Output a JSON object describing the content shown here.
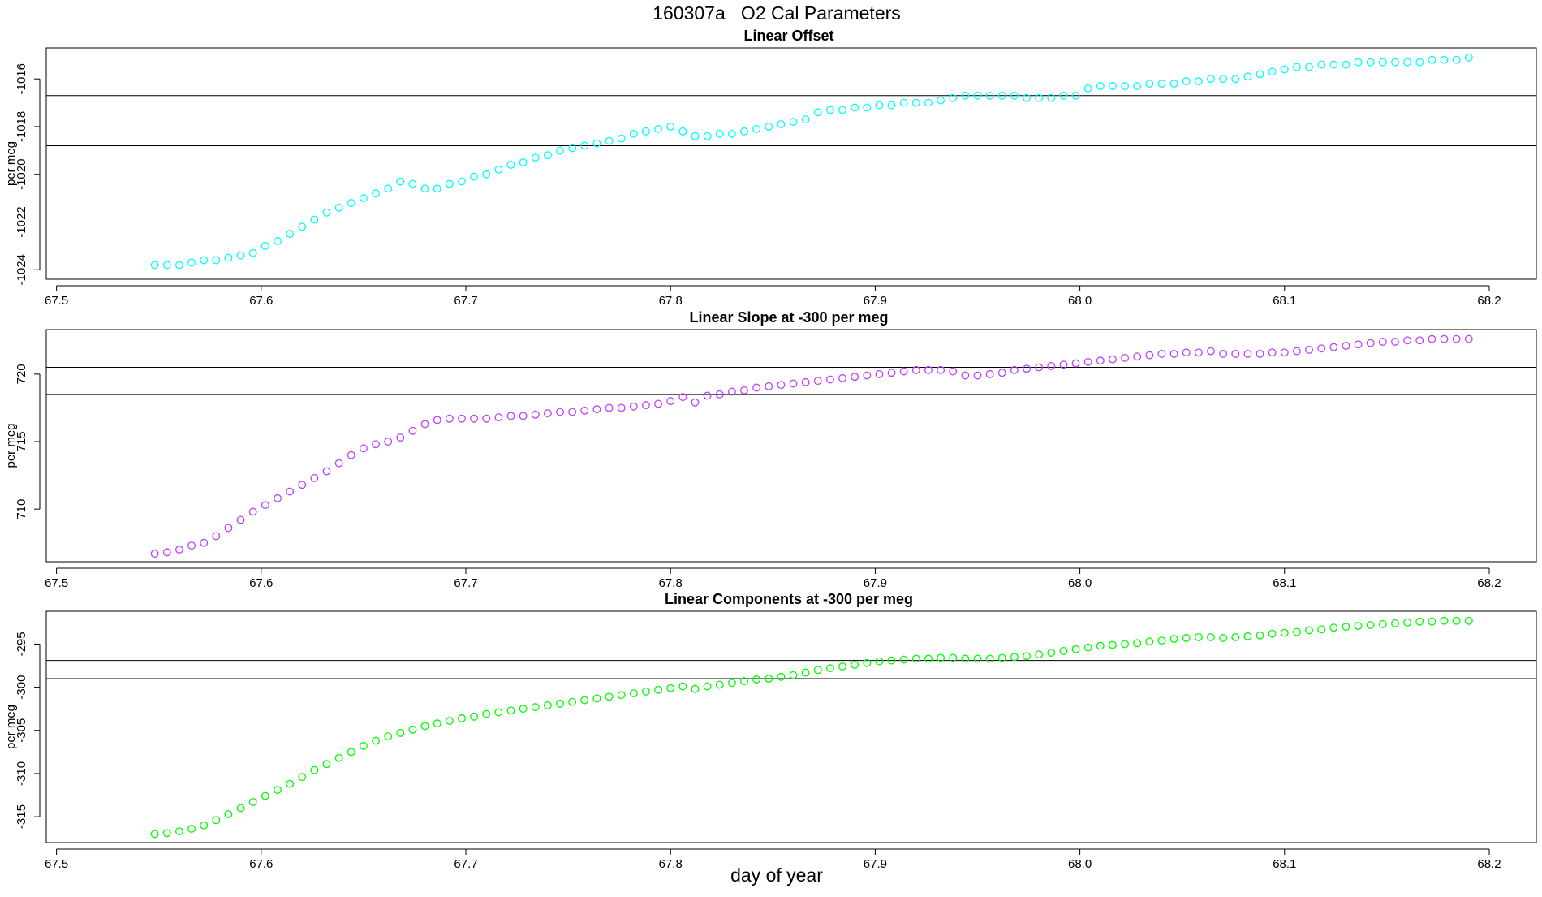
{
  "title": "160307a   O2 Cal Parameters",
  "chart_data": [
    {
      "type": "scatter",
      "title": "Linear Offset",
      "ylabel": "per meg",
      "color": "#00ffff",
      "xlim": [
        67.495,
        68.223
      ],
      "xticks": [
        67.5,
        67.6,
        67.7,
        67.8,
        67.9,
        {
          "value": 68,
          "label": "68.0"
        },
        68.1,
        68.2
      ],
      "ylim": [
        -1024.4,
        -1014.7
      ],
      "yticks": [
        -1024,
        -1022,
        -1020,
        -1018,
        -1016
      ],
      "hlines": [
        -1016.7,
        -1018.8
      ],
      "x": [
        67.548,
        67.554,
        67.56,
        67.566,
        67.572,
        67.578,
        67.584,
        67.59,
        67.596,
        67.602,
        67.608,
        67.614,
        67.62,
        67.626,
        67.632,
        67.638,
        67.644,
        67.65,
        67.656,
        67.662,
        67.668,
        67.674,
        67.68,
        67.686,
        67.692,
        67.698,
        67.704,
        67.71,
        67.716,
        67.722,
        67.728,
        67.734,
        67.74,
        67.746,
        67.752,
        67.758,
        67.764,
        67.77,
        67.776,
        67.782,
        67.788,
        67.794,
        67.8,
        67.806,
        67.812,
        67.818,
        67.824,
        67.83,
        67.836,
        67.842,
        67.848,
        67.854,
        67.86,
        67.866,
        67.872,
        67.878,
        67.884,
        67.89,
        67.896,
        67.902,
        67.908,
        67.914,
        67.92,
        67.926,
        67.932,
        67.938,
        67.944,
        67.95,
        67.956,
        67.962,
        67.968,
        67.974,
        67.98,
        67.986,
        67.992,
        67.998,
        68.004,
        68.01,
        68.016,
        68.022,
        68.028,
        68.034,
        68.04,
        68.046,
        68.052,
        68.058,
        68.064,
        68.07,
        68.076,
        68.082,
        68.088,
        68.094,
        68.1,
        68.106,
        68.112,
        68.118,
        68.124,
        68.13,
        68.136,
        68.142,
        68.148,
        68.154,
        68.16,
        68.166,
        68.172,
        68.178,
        68.184,
        68.19
      ],
      "values": [
        -1023.8,
        -1023.8,
        -1023.8,
        -1023.7,
        -1023.6,
        -1023.6,
        -1023.5,
        -1023.4,
        -1023.3,
        -1023.0,
        -1022.8,
        -1022.5,
        -1022.2,
        -1021.9,
        -1021.6,
        -1021.4,
        -1021.2,
        -1021.0,
        -1020.8,
        -1020.6,
        -1020.3,
        -1020.4,
        -1020.6,
        -1020.6,
        -1020.4,
        -1020.3,
        -1020.1,
        -1020.0,
        -1019.8,
        -1019.6,
        -1019.5,
        -1019.3,
        -1019.2,
        -1019.0,
        -1018.9,
        -1018.8,
        -1018.7,
        -1018.6,
        -1018.5,
        -1018.3,
        -1018.2,
        -1018.1,
        -1018.0,
        -1018.2,
        -1018.4,
        -1018.4,
        -1018.3,
        -1018.3,
        -1018.2,
        -1018.1,
        -1018.0,
        -1017.9,
        -1017.8,
        -1017.7,
        -1017.4,
        -1017.3,
        -1017.3,
        -1017.2,
        -1017.2,
        -1017.1,
        -1017.1,
        -1017.0,
        -1017.0,
        -1017.0,
        -1016.9,
        -1016.8,
        -1016.7,
        -1016.7,
        -1016.7,
        -1016.7,
        -1016.7,
        -1016.8,
        -1016.8,
        -1016.8,
        -1016.7,
        -1016.7,
        -1016.4,
        -1016.3,
        -1016.3,
        -1016.3,
        -1016.3,
        -1016.2,
        -1016.2,
        -1016.2,
        -1016.1,
        -1016.1,
        -1016.0,
        -1016.0,
        -1016.0,
        -1015.9,
        -1015.8,
        -1015.7,
        -1015.6,
        -1015.5,
        -1015.5,
        -1015.4,
        -1015.4,
        -1015.4,
        -1015.3,
        -1015.3,
        -1015.3,
        -1015.3,
        -1015.3,
        -1015.3,
        -1015.2,
        -1015.2,
        -1015.2,
        -1015.1
      ]
    },
    {
      "type": "scatter",
      "title": "Linear Slope at -300 per meg",
      "ylabel": "per meg",
      "color": "#c040ff",
      "xlim": [
        67.495,
        68.223
      ],
      "xticks": [
        67.5,
        67.6,
        67.7,
        67.8,
        67.9,
        {
          "value": 68,
          "label": "68.0"
        },
        68.1,
        68.2
      ],
      "ylim": [
        706.1,
        723.3
      ],
      "yticks": [
        710,
        715,
        720
      ],
      "hlines": [
        720.5,
        718.5
      ],
      "x": [
        67.548,
        67.554,
        67.56,
        67.566,
        67.572,
        67.578,
        67.584,
        67.59,
        67.596,
        67.602,
        67.608,
        67.614,
        67.62,
        67.626,
        67.632,
        67.638,
        67.644,
        67.65,
        67.656,
        67.662,
        67.668,
        67.674,
        67.68,
        67.686,
        67.692,
        67.698,
        67.704,
        67.71,
        67.716,
        67.722,
        67.728,
        67.734,
        67.74,
        67.746,
        67.752,
        67.758,
        67.764,
        67.77,
        67.776,
        67.782,
        67.788,
        67.794,
        67.8,
        67.806,
        67.812,
        67.818,
        67.824,
        67.83,
        67.836,
        67.842,
        67.848,
        67.854,
        67.86,
        67.866,
        67.872,
        67.878,
        67.884,
        67.89,
        67.896,
        67.902,
        67.908,
        67.914,
        67.92,
        67.926,
        67.932,
        67.938,
        67.944,
        67.95,
        67.956,
        67.962,
        67.968,
        67.974,
        67.98,
        67.986,
        67.992,
        67.998,
        68.004,
        68.01,
        68.016,
        68.022,
        68.028,
        68.034,
        68.04,
        68.046,
        68.052,
        68.058,
        68.064,
        68.07,
        68.076,
        68.082,
        68.088,
        68.094,
        68.1,
        68.106,
        68.112,
        68.118,
        68.124,
        68.13,
        68.136,
        68.142,
        68.148,
        68.154,
        68.16,
        68.166,
        68.172,
        68.178,
        68.184,
        68.19
      ],
      "values": [
        706.7,
        706.8,
        707.0,
        707.3,
        707.5,
        708.0,
        708.6,
        709.2,
        709.8,
        710.3,
        710.8,
        711.3,
        711.8,
        712.3,
        712.8,
        713.4,
        714.0,
        714.5,
        714.8,
        715.0,
        715.3,
        715.8,
        716.3,
        716.6,
        716.7,
        716.7,
        716.7,
        716.7,
        716.8,
        716.9,
        716.9,
        717.0,
        717.1,
        717.2,
        717.2,
        717.3,
        717.4,
        717.5,
        717.5,
        717.6,
        717.7,
        717.8,
        718.0,
        718.3,
        717.9,
        718.4,
        718.5,
        718.7,
        718.8,
        719.0,
        719.1,
        719.2,
        719.3,
        719.4,
        719.5,
        719.6,
        719.7,
        719.8,
        719.9,
        720.0,
        720.1,
        720.2,
        720.3,
        720.3,
        720.3,
        720.2,
        719.9,
        719.9,
        720.0,
        720.1,
        720.3,
        720.4,
        720.5,
        720.6,
        720.7,
        720.8,
        720.9,
        721.0,
        721.1,
        721.2,
        721.3,
        721.4,
        721.5,
        721.5,
        721.6,
        721.6,
        721.7,
        721.5,
        721.5,
        721.5,
        721.5,
        721.6,
        721.6,
        721.7,
        721.8,
        721.9,
        722.0,
        722.1,
        722.2,
        722.3,
        722.4,
        722.4,
        722.5,
        722.5,
        722.6,
        722.6,
        722.6,
        722.6
      ]
    },
    {
      "type": "scatter",
      "title": "Linear Components at -300 per meg",
      "ylabel": "per meg",
      "xlabel": "day of year",
      "color": "#00ff00",
      "xlim": [
        67.495,
        68.223
      ],
      "xticks": [
        67.5,
        67.6,
        67.7,
        67.8,
        67.9,
        {
          "value": 68,
          "label": "68.0"
        },
        68.1,
        68.2
      ],
      "ylim": [
        -318.0,
        -291.2
      ],
      "yticks": [
        -315,
        -310,
        -305,
        -300,
        -295
      ],
      "hlines": [
        -296.9,
        -299.0
      ],
      "x": [
        67.548,
        67.554,
        67.56,
        67.566,
        67.572,
        67.578,
        67.584,
        67.59,
        67.596,
        67.602,
        67.608,
        67.614,
        67.62,
        67.626,
        67.632,
        67.638,
        67.644,
        67.65,
        67.656,
        67.662,
        67.668,
        67.674,
        67.68,
        67.686,
        67.692,
        67.698,
        67.704,
        67.71,
        67.716,
        67.722,
        67.728,
        67.734,
        67.74,
        67.746,
        67.752,
        67.758,
        67.764,
        67.77,
        67.776,
        67.782,
        67.788,
        67.794,
        67.8,
        67.806,
        67.812,
        67.818,
        67.824,
        67.83,
        67.836,
        67.842,
        67.848,
        67.854,
        67.86,
        67.866,
        67.872,
        67.878,
        67.884,
        67.89,
        67.896,
        67.902,
        67.908,
        67.914,
        67.92,
        67.926,
        67.932,
        67.938,
        67.944,
        67.95,
        67.956,
        67.962,
        67.968,
        67.974,
        67.98,
        67.986,
        67.992,
        67.998,
        68.004,
        68.01,
        68.016,
        68.022,
        68.028,
        68.034,
        68.04,
        68.046,
        68.052,
        68.058,
        68.064,
        68.07,
        68.076,
        68.082,
        68.088,
        68.094,
        68.1,
        68.106,
        68.112,
        68.118,
        68.124,
        68.13,
        68.136,
        68.142,
        68.148,
        68.154,
        68.16,
        68.166,
        68.172,
        68.178,
        68.184,
        68.19
      ],
      "values": [
        -317.0,
        -316.9,
        -316.7,
        -316.4,
        -316.0,
        -315.4,
        -314.7,
        -314.0,
        -313.3,
        -312.6,
        -311.9,
        -311.2,
        -310.4,
        -309.6,
        -308.9,
        -308.2,
        -307.5,
        -306.8,
        -306.2,
        -305.7,
        -305.3,
        -304.9,
        -304.5,
        -304.2,
        -303.9,
        -303.6,
        -303.4,
        -303.1,
        -302.9,
        -302.7,
        -302.5,
        -302.3,
        -302.1,
        -301.9,
        -301.7,
        -301.5,
        -301.3,
        -301.1,
        -300.9,
        -300.7,
        -300.5,
        -300.3,
        -300.1,
        -299.9,
        -300.2,
        -299.9,
        -299.7,
        -299.5,
        -299.3,
        -299.1,
        -299.0,
        -298.8,
        -298.6,
        -298.3,
        -298.0,
        -297.8,
        -297.6,
        -297.4,
        -297.2,
        -297.0,
        -296.9,
        -296.8,
        -296.7,
        -296.7,
        -296.6,
        -296.6,
        -296.7,
        -296.7,
        -296.7,
        -296.6,
        -296.5,
        -296.4,
        -296.2,
        -296.0,
        -295.8,
        -295.6,
        -295.4,
        -295.2,
        -295.1,
        -295.0,
        -294.9,
        -294.7,
        -294.6,
        -294.4,
        -294.3,
        -294.2,
        -294.2,
        -294.3,
        -294.2,
        -294.1,
        -294.0,
        -293.8,
        -293.7,
        -293.6,
        -293.4,
        -293.3,
        -293.1,
        -293.0,
        -292.9,
        -292.8,
        -292.7,
        -292.6,
        -292.5,
        -292.4,
        -292.4,
        -292.3,
        -292.3,
        -292.3
      ]
    }
  ]
}
